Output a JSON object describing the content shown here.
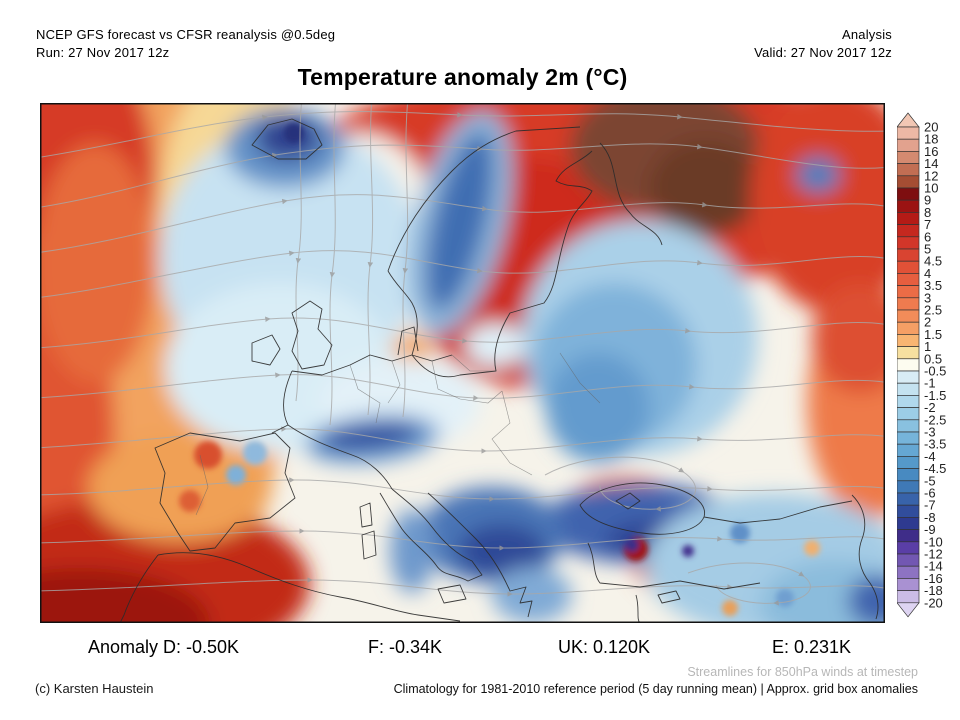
{
  "header": {
    "model_line": "NCEP GFS forecast vs CFSR reanalysis @0.5deg",
    "run_line": "Run: 27 Nov 2017 12z",
    "mode": "Analysis",
    "valid_line": "Valid: 27 Nov 2017 12z"
  },
  "title": "Temperature anomaly 2m (°C)",
  "colorbar": {
    "labels": [
      "20",
      "18",
      "16",
      "14",
      "12",
      "10",
      "9",
      "8",
      "7",
      "6",
      "5",
      "4.5",
      "4",
      "3.5",
      "3",
      "2.5",
      "2",
      "1.5",
      "1",
      "0.5",
      "-0.5",
      "-1",
      "-1.5",
      "-2",
      "-2.5",
      "-3",
      "-3.5",
      "-4",
      "-4.5",
      "-5",
      "-6",
      "-7",
      "-8",
      "-9",
      "-10",
      "-12",
      "-14",
      "-16",
      "-18",
      "-20"
    ],
    "band_colors": [
      "#edb8a5",
      "#e2a28e",
      "#d48a70",
      "#c26e53",
      "#a54d33",
      "#7e0e10",
      "#9b1312",
      "#b41b16",
      "#c5281f",
      "#d23629",
      "#d94431",
      "#e15137",
      "#e65e3f",
      "#eb6c46",
      "#ef7b4f",
      "#f28c59",
      "#f59f65",
      "#f8b572",
      "#f7e0a0",
      "#fdfcf0",
      "#d8ecf5",
      "#c4e2f0",
      "#b0d8ec",
      "#9ccde6",
      "#89c1e0",
      "#76b4da",
      "#65a7d3",
      "#5599ca",
      "#488ac1",
      "#3f79b6",
      "#3863aa",
      "#314d9c",
      "#2e3a90",
      "#3f2d89",
      "#5a3ea6",
      "#7257b2",
      "#8d73c2",
      "#a991d2",
      "#cbbce6"
    ],
    "triangle_top_color": "#f2c7b4",
    "triangle_bottom_color": "#ded4f2",
    "outline_color": "#333333"
  },
  "stats": {
    "d": "Anomaly D: -0.50K",
    "f": "F: -0.34K",
    "uk": "UK: 0.120K",
    "e": "E: 0.231K"
  },
  "footer": {
    "credit": "(c) Karsten Haustein",
    "streamlines_note": "Streamlines for 850hPa winds at timestep",
    "climatology_note": "Climatology for 1981-2010 reference period (5 day running mean) | Approx. grid box anomalies"
  }
}
